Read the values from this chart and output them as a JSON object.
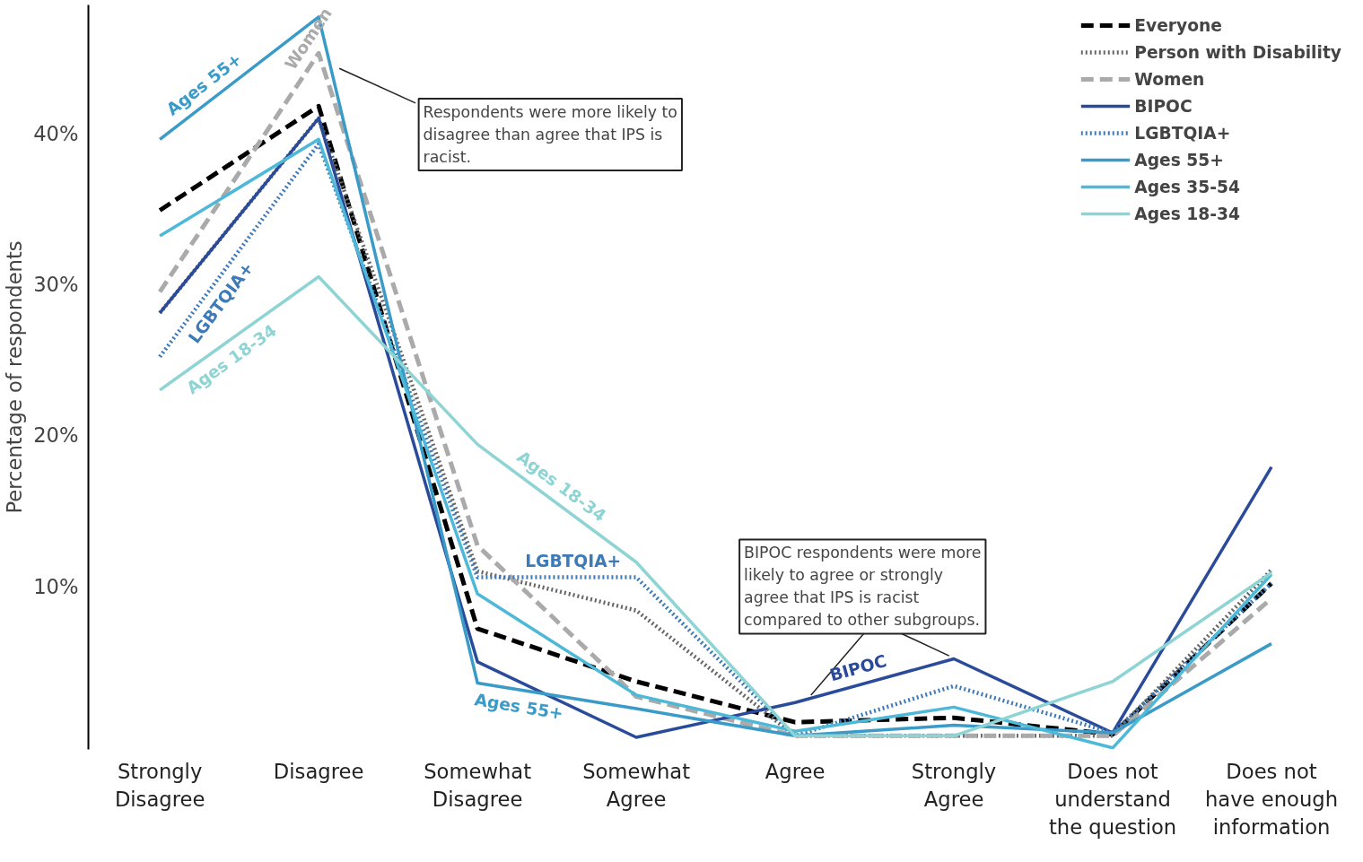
{
  "chart_data": {
    "type": "line",
    "ylabel": "Percentage of respondents",
    "categories": [
      "Strongly Disagree",
      "Disagree",
      "Somewhat Disagree",
      "Somewhat Agree",
      "Agree",
      "Strongly Agree",
      "Does not understand the question",
      "Does not have enough information"
    ],
    "ylim": [
      -0.8,
      48.5
    ],
    "yticks": [
      {
        "value": 10,
        "label": "10%"
      },
      {
        "value": 20,
        "label": "20%"
      },
      {
        "value": 30,
        "label": "30%"
      },
      {
        "value": 40,
        "label": "40%"
      }
    ],
    "grid": false,
    "legend": "top right",
    "series": [
      {
        "name": "Everyone",
        "color": "#000000",
        "line_style": "dashed",
        "values": [
          34.9,
          41.8,
          7.2,
          3.7,
          1.0,
          1.3,
          0.2,
          10.2
        ]
      },
      {
        "name": "Person with Disability",
        "color": "#666666",
        "line_style": "dotted",
        "values": [
          28.1,
          41.0,
          11.0,
          8.4,
          0.1,
          0.1,
          0.1,
          11.1
        ]
      },
      {
        "name": "Women",
        "color": "#aaaaaa",
        "line_style": "dashed",
        "values": [
          29.5,
          45.3,
          12.7,
          2.7,
          0.1,
          0.1,
          0.1,
          9.2
        ]
      },
      {
        "name": "BIPOC",
        "color": "#2a4a9a",
        "line_style": "solid",
        "values": [
          28.1,
          41.0,
          5.0,
          0.0,
          2.3,
          5.2,
          0.3,
          17.9
        ]
      },
      {
        "name": "LGBTQIA+",
        "color": "#3d7ab8",
        "line_style": "dotted",
        "values": [
          25.2,
          39.3,
          10.6,
          10.6,
          0.1,
          3.4,
          0.3,
          10.2
        ]
      },
      {
        "name": "Ages 55+",
        "color": "#3a9bc8",
        "line_style": "solid",
        "values": [
          39.6,
          47.7,
          3.6,
          1.9,
          0.1,
          0.8,
          0.3,
          6.2
        ]
      },
      {
        "name": "Ages 35-54",
        "color": "#4db8d8",
        "line_style": "solid",
        "values": [
          33.2,
          39.6,
          9.5,
          2.8,
          0.4,
          2.0,
          -0.7,
          10.8
        ]
      },
      {
        "name": "Ages 18-34",
        "color": "#8fd4d4",
        "line_style": "solid",
        "values": [
          23.0,
          30.5,
          19.4,
          11.6,
          0.1,
          0.1,
          3.7,
          10.9
        ]
      }
    ],
    "annotations": [
      "Respondents were more likely to disagree than agree that IPS is racist.",
      {
        "text": "BIPOC respondents were more likely to agree or strongly agree that IPS is racist compared to other subgroups.",
        "x": "Strongly Agree",
        "y": 5.2
      },
      {
        "text": "Ages 55+",
        "x": "Strongly Disagree",
        "y": 39.6
      },
      {
        "text": "Women",
        "x": "Disagree",
        "y": 45.3
      },
      {
        "text": "LGBTQIA+",
        "x": "Strongly Disagree",
        "y": 25.2
      },
      {
        "text": "Ages 18-34",
        "x": "Strongly Disagree",
        "y": 23.0
      },
      {
        "text": "Ages 18-34",
        "x": "Somewhat Disagree",
        "y": 19.4
      },
      {
        "text": "LGBTQIA+",
        "x": "Somewhat Disagree",
        "y": 10.6
      },
      {
        "text": "Ages 55+",
        "x": "Somewhat Disagree",
        "y": 3.6
      },
      {
        "text": "BIPOC",
        "x": "Agree",
        "y": 2.3
      }
    ]
  }
}
